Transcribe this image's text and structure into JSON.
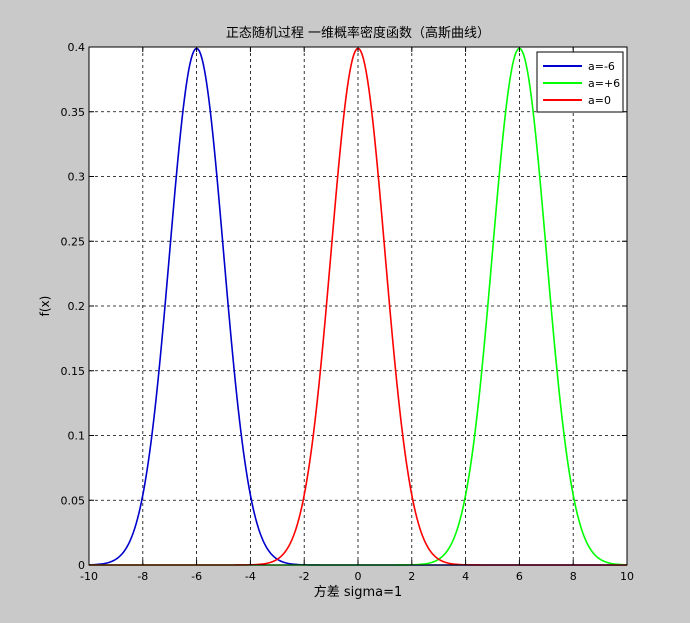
{
  "chart_data": {
    "type": "line",
    "title": "正态随机过程 一维概率密度函数（高斯曲线）",
    "xlabel": "方差 sigma=1",
    "ylabel": "f(x)",
    "xlim": [
      -10,
      10
    ],
    "ylim": [
      0,
      0.4
    ],
    "xticks": [
      -10,
      -8,
      -6,
      -4,
      -2,
      0,
      2,
      4,
      6,
      8,
      10
    ],
    "yticks": [
      0,
      0.05,
      0.1,
      0.15,
      0.2,
      0.25,
      0.3,
      0.35,
      0.4
    ],
    "xtick_labels": [
      "-10",
      "-8",
      "-6",
      "-4",
      "-2",
      "0",
      "2",
      "4",
      "6",
      "8",
      "10"
    ],
    "ytick_labels": [
      "0",
      "0.05",
      "0.1",
      "0.15",
      "0.2",
      "0.25",
      "0.3",
      "0.35",
      "0.4"
    ],
    "grid": true,
    "legend_position": "top-right",
    "x": [
      -10,
      -9.5,
      -9,
      -8.5,
      -8,
      -7.5,
      -7,
      -6.5,
      -6,
      -5.5,
      -5,
      -4.5,
      -4,
      -3.5,
      -3,
      -2.5,
      -2,
      -1.5,
      -1,
      -0.5,
      0,
      0.5,
      1,
      1.5,
      2,
      2.5,
      3,
      3.5,
      4,
      4.5,
      5,
      5.5,
      6,
      6.5,
      7,
      7.5,
      8,
      8.5,
      9,
      9.5,
      10
    ],
    "series": [
      {
        "name": "a=-6",
        "color": "#0000cc",
        "values": [
          0.0001,
          0.0009,
          0.0044,
          0.0175,
          0.054,
          0.1295,
          0.242,
          0.3521,
          0.3989,
          0.3521,
          0.242,
          0.1295,
          0.054,
          0.0175,
          0.0044,
          0.0009,
          0.0001,
          0.0,
          0.0,
          0.0,
          0.0,
          0.0,
          0.0,
          0.0,
          0.0,
          0.0,
          0.0,
          0.0,
          0.0,
          0.0,
          0.0,
          0.0,
          0.0,
          0.0,
          0.0,
          0.0,
          0.0,
          0.0,
          0.0,
          0.0,
          0.0
        ]
      },
      {
        "name": "a=+6",
        "color": "#00ff00",
        "values": [
          0.0,
          0.0,
          0.0,
          0.0,
          0.0,
          0.0,
          0.0,
          0.0,
          0.0,
          0.0,
          0.0,
          0.0,
          0.0,
          0.0,
          0.0,
          0.0,
          0.0,
          0.0,
          0.0,
          0.0,
          0.0,
          0.0,
          0.0,
          0.0,
          0.0001,
          0.0009,
          0.0044,
          0.0175,
          0.054,
          0.1295,
          0.242,
          0.3521,
          0.3989,
          0.3521,
          0.242,
          0.1295,
          0.054,
          0.0175,
          0.0044,
          0.0009,
          0.0001
        ]
      },
      {
        "name": "a=0",
        "color": "#ff0000",
        "values": [
          0.0,
          0.0,
          0.0,
          0.0,
          0.0,
          0.0,
          0.0,
          0.0,
          0.0,
          0.0,
          0.0,
          0.0,
          0.0001,
          0.0009,
          0.0044,
          0.0175,
          0.054,
          0.1295,
          0.242,
          0.3521,
          0.3989,
          0.3521,
          0.242,
          0.1295,
          0.054,
          0.0175,
          0.0044,
          0.0009,
          0.0001,
          0.0,
          0.0,
          0.0,
          0.0,
          0.0,
          0.0,
          0.0,
          0.0,
          0.0,
          0.0,
          0.0,
          0.0
        ]
      }
    ]
  }
}
